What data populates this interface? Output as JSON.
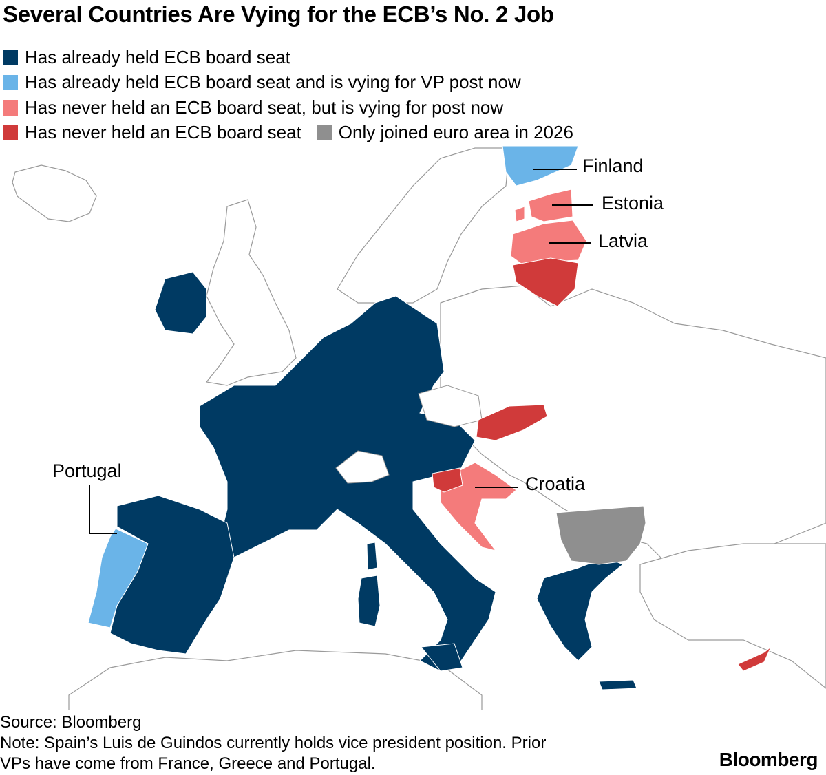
{
  "title": "Several Countries Are Vying for the ECB’s No. 2 Job",
  "legend": [
    {
      "label": "Has already held ECB board seat",
      "color": "#003a63"
    },
    {
      "label": "Has already held ECB board seat and is vying for VP post now",
      "color": "#6ab4e8"
    },
    {
      "label": "Has never held an ECB board seat, but is vying for post now",
      "color": "#f47b7b"
    },
    {
      "label": "Has never held an ECB board seat",
      "color": "#d03a3a"
    },
    {
      "label": "Only joined euro area in 2026",
      "color": "#8f8f8f"
    }
  ],
  "map_labels": {
    "finland": "Finland",
    "estonia": "Estonia",
    "latvia": "Latvia",
    "croatia": "Croatia",
    "portugal": "Portugal"
  },
  "footer": {
    "source": "Source: Bloomberg",
    "note_line1": "Note: Spain’s Luis de Guindos currently holds vice president position. Prior",
    "note_line2": "VPs have come from France, Greece and Portugal."
  },
  "brand": "Bloomberg"
}
